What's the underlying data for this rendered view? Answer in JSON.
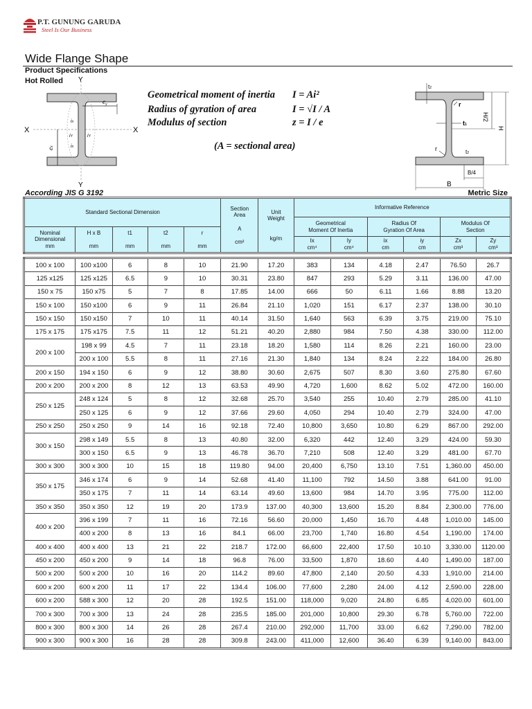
{
  "logo": {
    "company": "P.T. GUNUNG GARUDA",
    "tagline": "Steel Is Our Business",
    "accent": "#c0282d"
  },
  "title": "Wide Flange Shape",
  "subtitle1": "Product Specifications",
  "subtitle2": "Hot Rolled",
  "diagram_left": {
    "axis_x": "X",
    "axis_y": "Y",
    "labels": [
      "ey",
      "ex",
      "ix",
      "iy"
    ]
  },
  "diagram_right": {
    "labels": [
      "t2",
      "r",
      "t1",
      "H/2",
      "H",
      "B/4",
      "B"
    ]
  },
  "formulas": [
    {
      "label": "Geometrical moment of inertia",
      "expr": "I = Ai²"
    },
    {
      "label": "Radius of gyration of area",
      "expr": "I = √I / A"
    },
    {
      "label": "Modulus of section",
      "expr": "z = I / e"
    }
  ],
  "formula_note": "(A = sectional area)",
  "standard": "According JIS G 3192",
  "units_note": "Metric Size",
  "header": {
    "standard": "Standard Sectional Dimension",
    "section_area": "Section",
    "section_area2": "Area",
    "section_a": "A",
    "section_unit": "cm²",
    "unit_weight": "Unit",
    "unit_weight2": "Weight",
    "unit_weight_unit": "kg/m",
    "informative": "Informative Reference",
    "geo1": "Geometrical",
    "geo2": "Moment Of Inertia",
    "rad1": "Radius Of",
    "rad2": "Gyration Of Area",
    "mod1": "Modulus Of",
    "mod2": "Section",
    "nominal1": "Nominal",
    "nominal2": "Dimensional",
    "hxb": "H x B",
    "t1": "t1",
    "t2": "t2",
    "r": "r",
    "mm": "mm",
    "ix": "Ix",
    "iy": "Iy",
    "ix_s": "ix",
    "iy_s": "iy",
    "zx": "Zx",
    "zy": "Zy",
    "cm4": "cm⁴",
    "cm": "cm",
    "cm3": "cm³"
  },
  "groups": [
    {
      "nominal": "100 x 100",
      "rows": [
        [
          "100 x100",
          "6",
          "8",
          "10",
          "21.90",
          "17.20",
          "383",
          "134",
          "4.18",
          "2.47",
          "76.50",
          "26.7"
        ]
      ]
    },
    {
      "nominal": "125 x125",
      "rows": [
        [
          "125 x125",
          "6.5",
          "9",
          "10",
          "30.31",
          "23.80",
          "847",
          "293",
          "5.29",
          "3.11",
          "136.00",
          "47.00"
        ]
      ]
    },
    {
      "nominal": "150 x 75",
      "rows": [
        [
          "150 x75",
          "5",
          "7",
          "8",
          "17.85",
          "14.00",
          "666",
          "50",
          "6.11",
          "1.66",
          "8.88",
          "13.20"
        ]
      ]
    },
    {
      "nominal": "150 x 100",
      "rows": [
        [
          "150 x100",
          "6",
          "9",
          "11",
          "26.84",
          "21.10",
          "1,020",
          "151",
          "6.17",
          "2.37",
          "138.00",
          "30.10"
        ]
      ]
    },
    {
      "nominal": "150 x 150",
      "rows": [
        [
          "150 x150",
          "7",
          "10",
          "11",
          "40.14",
          "31.50",
          "1,640",
          "563",
          "6.39",
          "3.75",
          "219.00",
          "75.10"
        ]
      ]
    },
    {
      "nominal": "175 x 175",
      "rows": [
        [
          "175 x175",
          "7.5",
          "11",
          "12",
          "51.21",
          "40.20",
          "2,880",
          "984",
          "7.50",
          "4.38",
          "330.00",
          "112.00"
        ]
      ]
    },
    {
      "nominal": "200 x 100",
      "rows": [
        [
          "198 x 99",
          "4.5",
          "7",
          "11",
          "23.18",
          "18.20",
          "1,580",
          "114",
          "8.26",
          "2.21",
          "160.00",
          "23.00"
        ],
        [
          "200 x 100",
          "5.5",
          "8",
          "11",
          "27.16",
          "21.30",
          "1,840",
          "134",
          "8.24",
          "2.22",
          "184.00",
          "26.80"
        ]
      ]
    },
    {
      "nominal": "200 x 150",
      "rows": [
        [
          "194 x 150",
          "6",
          "9",
          "12",
          "38.80",
          "30.60",
          "2,675",
          "507",
          "8.30",
          "3.60",
          "275.80",
          "67.60"
        ]
      ]
    },
    {
      "nominal": "200 x 200",
      "rows": [
        [
          "200 x 200",
          "8",
          "12",
          "13",
          "63.53",
          "49.90",
          "4,720",
          "1,600",
          "8.62",
          "5.02",
          "472.00",
          "160.00"
        ]
      ]
    },
    {
      "nominal": "250 x 125",
      "rows": [
        [
          "248 x 124",
          "5",
          "8",
          "12",
          "32.68",
          "25.70",
          "3,540",
          "255",
          "10.40",
          "2.79",
          "285.00",
          "41.10"
        ],
        [
          "250 x 125",
          "6",
          "9",
          "12",
          "37.66",
          "29.60",
          "4,050",
          "294",
          "10.40",
          "2.79",
          "324.00",
          "47.00"
        ]
      ]
    },
    {
      "nominal": "250 x 250",
      "rows": [
        [
          "250 x  250",
          "9",
          "14",
          "16",
          "92.18",
          "72.40",
          "10,800",
          "3,650",
          "10.80",
          "6.29",
          "867.00",
          "292.00"
        ]
      ]
    },
    {
      "nominal": "300 x 150",
      "rows": [
        [
          "298 x 149",
          "5.5",
          "8",
          "13",
          "40.80",
          "32.00",
          "6,320",
          "442",
          "12.40",
          "3.29",
          "424.00",
          "59.30"
        ],
        [
          "300 x 150",
          "6.5",
          "9",
          "13",
          "46.78",
          "36.70",
          "7,210",
          "508",
          "12.40",
          "3.29",
          "481.00",
          "67.70"
        ]
      ]
    },
    {
      "nominal": "300 x 300",
      "rows": [
        [
          "300 x 300",
          "10",
          "15",
          "18",
          "119.80",
          "94.00",
          "20,400",
          "6,750",
          "13.10",
          "7.51",
          "1,360.00",
          "450.00"
        ]
      ]
    },
    {
      "nominal": "350 x 175",
      "rows": [
        [
          "346 x 174",
          "6",
          "9",
          "14",
          "52.68",
          "41.40",
          "11,100",
          "792",
          "14.50",
          "3.88",
          "641.00",
          "91.00"
        ],
        [
          "350 x 175",
          "7",
          "11",
          "14",
          "63.14",
          "49.60",
          "13,600",
          "984",
          "14.70",
          "3.95",
          "775.00",
          "112.00"
        ]
      ]
    },
    {
      "nominal": "350 x 350",
      "rows": [
        [
          "350 x 350",
          "12",
          "19",
          "20",
          "173.9",
          "137.00",
          "40,300",
          "13,600",
          "15.20",
          "8.84",
          "2,300.00",
          "776.00"
        ]
      ]
    },
    {
      "nominal": "400 x 200",
      "rows": [
        [
          "396 x 199",
          "7",
          "11",
          "16",
          "72.16",
          "56.60",
          "20,000",
          "1,450",
          "16.70",
          "4.48",
          "1,010.00",
          "145.00"
        ],
        [
          "400 x 200",
          "8",
          "13",
          "16",
          "84.1",
          "66.00",
          "23,700",
          "1,740",
          "16.80",
          "4.54",
          "1,190.00",
          "174.00"
        ]
      ]
    },
    {
      "nominal": "400 x 400",
      "rows": [
        [
          "400 x 400",
          "13",
          "21",
          "22",
          "218.7",
          "172.00",
          "66,600",
          "22,400",
          "17.50",
          "10.10",
          "3,330.00",
          "1120.00"
        ]
      ]
    },
    {
      "nominal": "450 x 200",
      "rows": [
        [
          "450 x 200",
          "9",
          "14",
          "18",
          "96.8",
          "76.00",
          "33,500",
          "1,870",
          "18.60",
          "4.40",
          "1,490.00",
          "187.00"
        ]
      ]
    },
    {
      "nominal": "500 x 200",
      "rows": [
        [
          "500 x 200",
          "10",
          "16",
          "20",
          "114.2",
          "89.60",
          "47,800",
          "2,140",
          "20.50",
          "4.33",
          "1,910.00",
          "214.00"
        ]
      ]
    },
    {
      "nominal": "600 x 200",
      "rows": [
        [
          "600 x 200",
          "11",
          "17",
          "22",
          "134.4",
          "106.00",
          "77,600",
          "2,280",
          "24.00",
          "4.12",
          "2,590.00",
          "228.00"
        ]
      ]
    },
    {
      "nominal": "600 x 200",
      "rows": [
        [
          "588 x 300",
          "12",
          "20",
          "28",
          "192.5",
          "151.00",
          "118,000",
          "9,020",
          "24.80",
          "6.85",
          "4,020.00",
          "601.00"
        ]
      ]
    },
    {
      "nominal": "700 x 300",
      "rows": [
        [
          "700 x 300",
          "13",
          "24",
          "28",
          "235.5",
          "185.00",
          "201,000",
          "10,800",
          "29.30",
          "6.78",
          "5,760.00",
          "722.00"
        ]
      ]
    },
    {
      "nominal": "800 x 300",
      "rows": [
        [
          "800 x 300",
          "14",
          "26",
          "28",
          "267.4",
          "210.00",
          "292,000",
          "11,700",
          "33.00",
          "6.62",
          "7,290.00",
          "782.00"
        ]
      ]
    },
    {
      "nominal": "900 x 300",
      "rows": [
        [
          "900 x 300",
          "16",
          "28",
          "28",
          "309.8",
          "243.00",
          "411,000",
          "12,600",
          "36.40",
          "6.39",
          "9,140.00",
          "843.00"
        ]
      ]
    }
  ],
  "colors": {
    "header_bg": "#cdf3fb",
    "section_fill": "#c8c8c8"
  }
}
